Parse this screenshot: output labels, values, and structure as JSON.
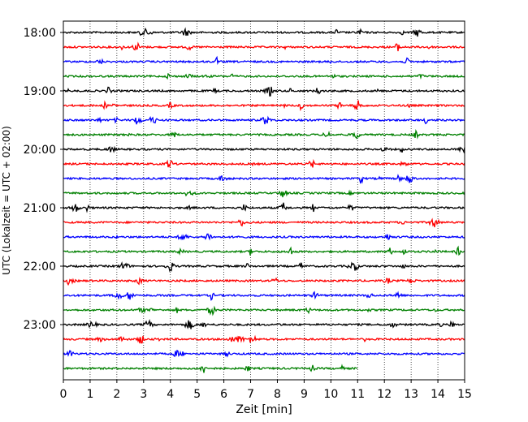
{
  "chart_data": {
    "type": "line",
    "title": "",
    "xlabel": "Zeit  [min]",
    "ylabel": "UTC (Lokalzeit = UTC + 02:00)",
    "xlim": [
      0,
      15
    ],
    "xticks": [
      0,
      1,
      2,
      3,
      4,
      5,
      6,
      7,
      8,
      9,
      10,
      11,
      12,
      13,
      14,
      15
    ],
    "xtick_labels": [
      "0",
      "1",
      "2",
      "3",
      "4",
      "5",
      "6",
      "7",
      "8",
      "9",
      "10",
      "11",
      "12",
      "13",
      "14",
      "15"
    ],
    "yticks": [
      "18:00",
      "19:00",
      "20:00",
      "21:00",
      "22:00",
      "23:00"
    ],
    "grid": "vertical dotted",
    "legend": "none",
    "color_cycle": [
      "#000000",
      "#ff0000",
      "#0000ff",
      "#008000"
    ],
    "traces": [
      {
        "start": "18:00",
        "end_min": 15
      },
      {
        "start": "18:15",
        "end_min": 15
      },
      {
        "start": "18:30",
        "end_min": 15
      },
      {
        "start": "18:45",
        "end_min": 15
      },
      {
        "start": "19:00",
        "end_min": 15
      },
      {
        "start": "19:15",
        "end_min": 15
      },
      {
        "start": "19:30",
        "end_min": 15
      },
      {
        "start": "19:45",
        "end_min": 15
      },
      {
        "start": "20:00",
        "end_min": 15
      },
      {
        "start": "20:15",
        "end_min": 15
      },
      {
        "start": "20:30",
        "end_min": 15
      },
      {
        "start": "20:45",
        "end_min": 15
      },
      {
        "start": "21:00",
        "end_min": 15
      },
      {
        "start": "21:15",
        "end_min": 15
      },
      {
        "start": "21:30",
        "end_min": 15
      },
      {
        "start": "21:45",
        "end_min": 15
      },
      {
        "start": "22:00",
        "end_min": 15
      },
      {
        "start": "22:15",
        "end_min": 15
      },
      {
        "start": "22:30",
        "end_min": 15
      },
      {
        "start": "22:45",
        "end_min": 15
      },
      {
        "start": "23:00",
        "end_min": 15
      },
      {
        "start": "23:15",
        "end_min": 15
      },
      {
        "start": "23:30",
        "end_min": 15
      },
      {
        "start": "23:45",
        "end_min": 11
      }
    ]
  }
}
